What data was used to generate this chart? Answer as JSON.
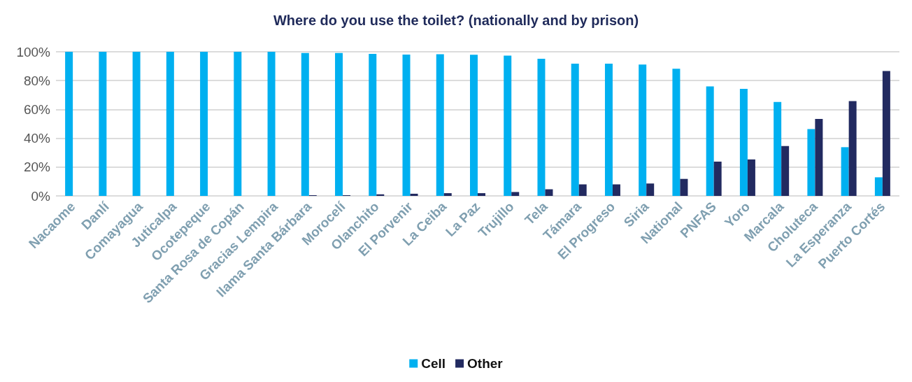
{
  "chart_data": {
    "type": "bar",
    "title": "Where do you use the toilet? (nationally and by prison)",
    "categories": [
      "Nacaome",
      "Danlí",
      "Comayagua",
      "Juticalpa",
      "Ocotepeque",
      "Santa Rosa de Copán",
      "Gracias Lempira",
      "Ilama Santa Bárbara",
      "Morocelí",
      "Olanchito",
      "El Porvenir",
      "La Ceiba",
      "La Paz",
      "Trujillo",
      "Tela",
      "Támara",
      "El Progreso",
      "Siria",
      "National",
      "PNFAS",
      "Yoro",
      "Marcala",
      "Choluteca",
      "La Esperanza",
      "Puerto Cortés"
    ],
    "series": [
      {
        "name": "Cell",
        "color": "#00b0f0",
        "values": [
          100,
          100,
          100,
          100,
          100,
          100,
          100,
          99.1,
          99.1,
          98.5,
          98.1,
          98.3,
          97.9,
          97.3,
          95.1,
          91.8,
          91.8,
          91.1,
          88.2,
          76,
          74.3,
          65.2,
          46.4,
          33.8,
          12.9
        ]
      },
      {
        "name": "Other",
        "color": "#222a60",
        "values": [
          0,
          0,
          0,
          0,
          0,
          0,
          0,
          0.5,
          0.5,
          1.1,
          1.5,
          1.9,
          1.9,
          2.7,
          4.6,
          8,
          8,
          8.6,
          11.8,
          23.8,
          25.3,
          34.6,
          53.4,
          65.8,
          86.7
        ]
      }
    ],
    "ylim": [
      0,
      100
    ],
    "yticks": [
      {
        "value": 0,
        "label": "0%"
      },
      {
        "value": 20,
        "label": "20%"
      },
      {
        "value": 40,
        "label": "40%"
      },
      {
        "value": 60,
        "label": "60%"
      },
      {
        "value": 80,
        "label": "80%"
      },
      {
        "value": 100,
        "label": "100%"
      }
    ],
    "grid": "y",
    "legend": "bottom"
  }
}
